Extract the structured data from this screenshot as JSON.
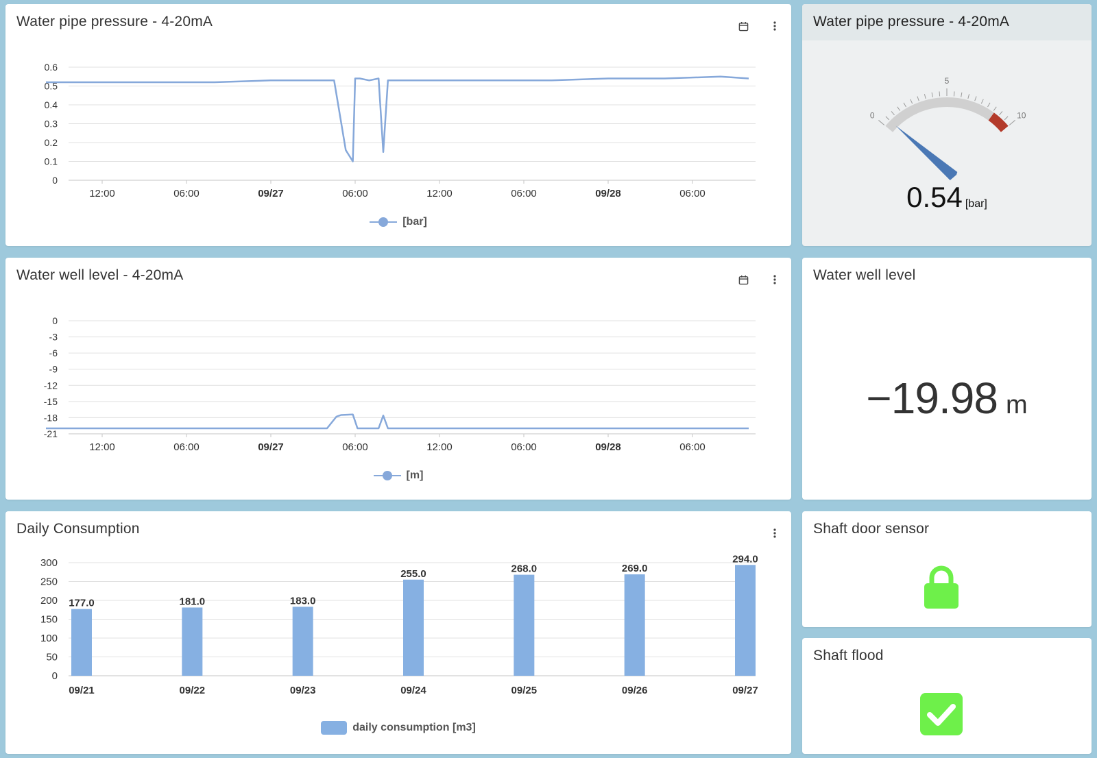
{
  "pressure_chart": {
    "title": "Water pipe pressure - 4-20mA",
    "legend": "[bar]",
    "calendar_icon": "calendar-icon",
    "menu_icon": "more-vert-icon"
  },
  "pressure_gauge": {
    "title": "Water pipe pressure - 4-20mA",
    "value": "0.54",
    "unit": "[bar]",
    "min_label": "0",
    "mid_label": "5",
    "max_label": "10",
    "min": 0,
    "max": 10,
    "reading": 0.54,
    "danger_from": 8.6,
    "track_color": "#d0d0d0",
    "danger_color": "#b33a2a",
    "needle_color": "#4a78b5"
  },
  "level_chart": {
    "title": "Water well level - 4-20mA",
    "legend": "[m]"
  },
  "level_value": {
    "title": "Water well level",
    "value": "−19.98",
    "unit": "m"
  },
  "consumption_chart": {
    "title": "Daily Consumption",
    "legend": "daily consumption [m3]"
  },
  "door_sensor": {
    "title": "Shaft door sensor",
    "icon": "lock-closed-icon",
    "color": "#6ef04a"
  },
  "flood_sensor": {
    "title": "Shaft flood",
    "icon": "checkbox-checked-icon",
    "color": "#6ef04a"
  },
  "chart_data": [
    {
      "type": "line",
      "title": "Water pipe pressure - 4-20mA",
      "series": [
        {
          "name": "[bar]",
          "x": [
            "09/26 08:00",
            "09/26 12:00",
            "09/26 16:00",
            "09/26 20:00",
            "09/27 00:00",
            "09/27 04:00",
            "09/27 04:30",
            "09/27 05:20",
            "09/27 05:50",
            "09/27 06:00",
            "09/27 06:20",
            "09/27 07:00",
            "09/27 07:40",
            "09/27 08:00",
            "09/27 08:20",
            "09/27 08:40",
            "09/27 12:00",
            "09/27 16:00",
            "09/27 20:00",
            "09/28 00:00",
            "09/28 04:00",
            "09/28 08:00",
            "09/28 10:00"
          ],
          "values": [
            0.52,
            0.52,
            0.52,
            0.52,
            0.53,
            0.53,
            0.53,
            0.16,
            0.1,
            0.54,
            0.54,
            0.53,
            0.54,
            0.15,
            0.53,
            0.53,
            0.53,
            0.53,
            0.53,
            0.54,
            0.54,
            0.55,
            0.54
          ],
          "color": "#86a8da"
        }
      ],
      "x_ticks": [
        "12:00",
        "06:00",
        "09/27",
        "06:00",
        "12:00",
        "06:00",
        "09/28",
        "06:00"
      ],
      "x_tick_bold": [
        false,
        false,
        true,
        false,
        false,
        false,
        true,
        false
      ],
      "y_ticks": [
        "0.6",
        "0.5",
        "0.4",
        "0.3",
        "0.2",
        "0.1",
        "0"
      ],
      "ylim": [
        0,
        0.6
      ],
      "grid": true,
      "legend_position": "bottom"
    },
    {
      "type": "line",
      "title": "Water well level - 4-20mA",
      "series": [
        {
          "name": "[m]",
          "x": [
            "09/26 08:00",
            "09/27 04:00",
            "09/27 04:40",
            "09/27 05:00",
            "09/27 05:50",
            "09/27 06:10",
            "09/27 07:40",
            "09/27 08:00",
            "09/27 08:20",
            "09/28 10:00"
          ],
          "values": [
            -19.98,
            -19.98,
            -17.8,
            -17.5,
            -17.4,
            -19.98,
            -19.98,
            -17.6,
            -19.98,
            -19.98
          ],
          "color": "#86a8da"
        }
      ],
      "x_ticks": [
        "12:00",
        "06:00",
        "09/27",
        "06:00",
        "12:00",
        "06:00",
        "09/28",
        "06:00"
      ],
      "x_tick_bold": [
        false,
        false,
        true,
        false,
        false,
        false,
        true,
        false
      ],
      "y_ticks": [
        "0",
        "-3",
        "-6",
        "-9",
        "-12",
        "-15",
        "-18",
        "-21"
      ],
      "ylim": [
        -21,
        0
      ],
      "grid": true,
      "legend_position": "bottom"
    },
    {
      "type": "bar",
      "title": "Daily Consumption",
      "categories": [
        "09/21",
        "09/22",
        "09/23",
        "09/24",
        "09/25",
        "09/26",
        "09/27"
      ],
      "series": [
        {
          "name": "daily consumption [m3]",
          "values": [
            177.0,
            181.0,
            183.0,
            255.0,
            268.0,
            269.0,
            294.0
          ],
          "color": "#86b0e2"
        }
      ],
      "data_labels": [
        "177.0",
        "181.0",
        "183.0",
        "255.0",
        "268.0",
        "269.0",
        "294.0"
      ],
      "y_ticks": [
        "300",
        "250",
        "200",
        "150",
        "100",
        "50",
        "0"
      ],
      "ylim": [
        0,
        300
      ],
      "grid": true,
      "legend_position": "bottom"
    }
  ]
}
